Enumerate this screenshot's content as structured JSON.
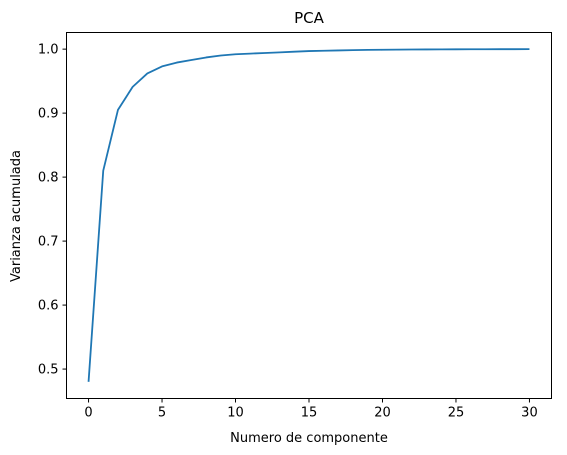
{
  "chart_data": {
    "type": "line",
    "title": "PCA",
    "xlabel": "Numero de componente",
    "ylabel": "Varianza acumulada",
    "xlim": [
      -1.5,
      31.5
    ],
    "ylim": [
      0.454,
      1.026
    ],
    "xticks": [
      0,
      5,
      10,
      15,
      20,
      25,
      30
    ],
    "xtick_labels": [
      "0",
      "5",
      "10",
      "15",
      "20",
      "25",
      "30"
    ],
    "yticks": [
      0.5,
      0.6,
      0.7,
      0.8,
      0.9,
      1.0
    ],
    "ytick_labels": [
      "0.5",
      "0.6",
      "0.7",
      "0.8",
      "0.9",
      "1.0"
    ],
    "grid": false,
    "line_color": "#1f77b4",
    "series": [
      {
        "x": [
          0,
          1,
          2,
          3,
          4,
          5,
          6,
          7,
          8,
          9,
          10,
          11,
          12,
          13,
          14,
          15,
          16,
          17,
          18,
          19,
          20,
          21,
          22,
          23,
          24,
          25,
          26,
          27,
          28,
          29,
          30
        ],
        "values": [
          0.48,
          0.81,
          0.905,
          0.941,
          0.962,
          0.973,
          0.979,
          0.983,
          0.987,
          0.99,
          0.992,
          0.993,
          0.994,
          0.995,
          0.996,
          0.997,
          0.9975,
          0.998,
          0.9985,
          0.9988,
          0.999,
          0.9992,
          0.9994,
          0.9995,
          0.9996,
          0.9997,
          0.9998,
          0.9998,
          0.9999,
          0.9999,
          1.0
        ]
      }
    ]
  }
}
